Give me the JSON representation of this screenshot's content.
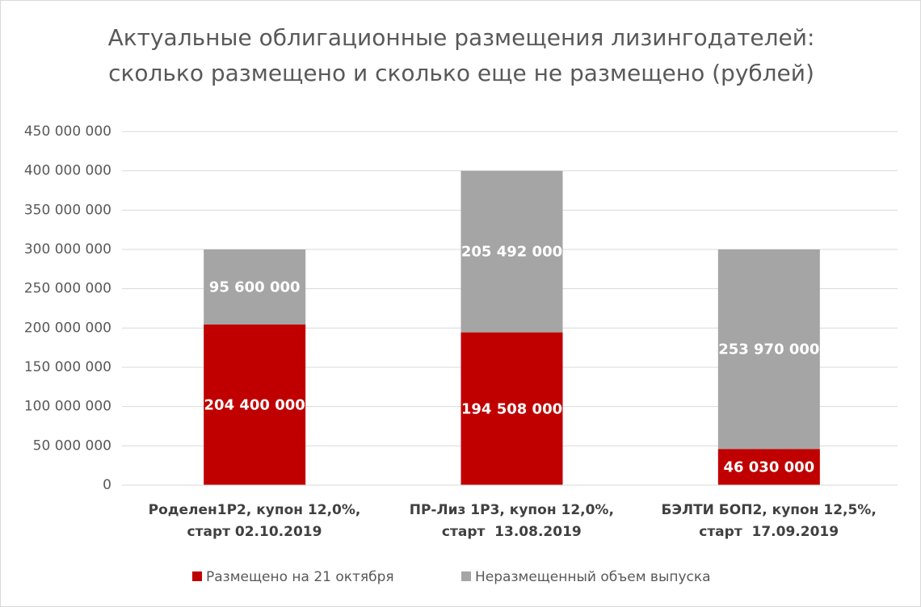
{
  "chart_data": {
    "type": "stacked_bar",
    "title": "Актуальные облигационные размещения лизингодателей: сколько размещено и сколько еще не размещено (рублей)",
    "categories": [
      "Роделен1Р2, купон 12,0%,\nстарт 02.10.2019",
      "ПР-Лиз 1Р3, купон 12,0%,\nстарт  13.08.2019",
      "БЭЛТИ БОП2, купон 12,5%,\nстарт  17.09.2019"
    ],
    "series": [
      {
        "name": "Размещено на 21 октября",
        "color": "#c00000",
        "values": [
          204400000,
          194508000,
          46030000
        ],
        "value_labels": [
          "204 400 000",
          "194 508 000",
          "46 030 000"
        ]
      },
      {
        "name": "Неразмещенный объем выпуска",
        "color": "#a5a5a5",
        "values": [
          95600000,
          205492000,
          253970000
        ],
        "value_labels": [
          "95 600 000",
          "205 492 000",
          "253 970 000"
        ]
      }
    ],
    "ylim": [
      0,
      450000000
    ],
    "yticks": [
      0,
      {
        "value": 50000000,
        "label": "50 000 000"
      },
      {
        "value": 100000000,
        "label": "100 000 000"
      },
      {
        "value": 150000000,
        "label": "150 000 000"
      },
      {
        "value": 200000000,
        "label": "200 000 000"
      },
      {
        "value": 250000000,
        "label": "250 000 000"
      },
      {
        "value": 300000000,
        "label": "300 000 000"
      },
      {
        "value": 350000000,
        "label": "350 000 000"
      },
      {
        "value": 400000000,
        "label": "400 000 000"
      },
      {
        "value": 450000000,
        "label": "450 000 000"
      }
    ],
    "grid": true
  }
}
